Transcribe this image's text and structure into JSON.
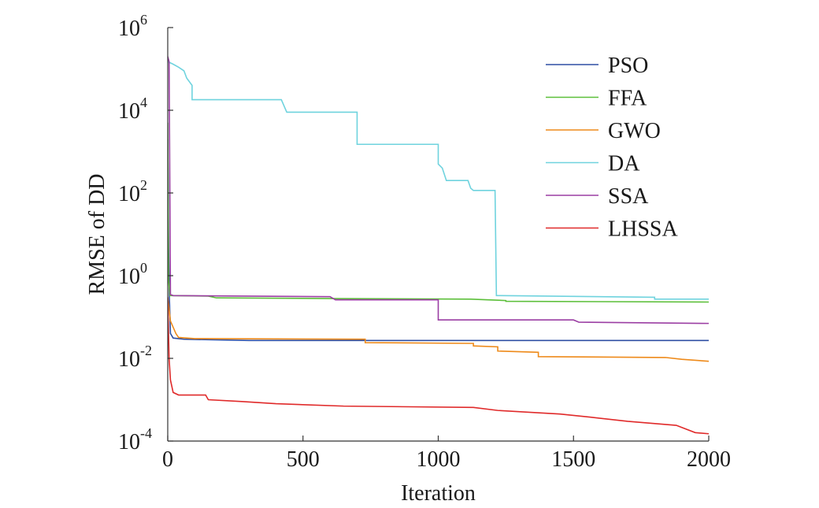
{
  "chart_data": {
    "type": "line",
    "title": "",
    "xlabel": "Iteration",
    "ylabel": "RMSE of DD",
    "xlim": [
      0,
      2000
    ],
    "ylim": [
      0.0001,
      1000000
    ],
    "yscale": "log",
    "grid": false,
    "legend_position": "top-right",
    "x_ticks": [
      {
        "value": 0,
        "label": "0"
      },
      {
        "value": 500,
        "label": "500"
      },
      {
        "value": 1000,
        "label": "1000"
      },
      {
        "value": 1500,
        "label": "1500"
      },
      {
        "value": 2000,
        "label": "2000"
      }
    ],
    "y_ticks": [
      {
        "value": 0.0001,
        "base": "10",
        "exp": "-4"
      },
      {
        "value": 0.01,
        "base": "10",
        "exp": "-2"
      },
      {
        "value": 1,
        "base": "10",
        "exp": "0"
      },
      {
        "value": 100,
        "base": "10",
        "exp": "2"
      },
      {
        "value": 10000,
        "base": "10",
        "exp": "4"
      },
      {
        "value": 1000000,
        "base": "10",
        "exp": "6"
      }
    ],
    "series": [
      {
        "name": "PSO",
        "color": "#2f4fa3",
        "points": [
          [
            0,
            2000
          ],
          [
            3,
            5
          ],
          [
            6,
            0.3
          ],
          [
            10,
            0.04
          ],
          [
            20,
            0.031
          ],
          [
            60,
            0.029
          ],
          [
            300,
            0.027
          ],
          [
            2000,
            0.027
          ]
        ]
      },
      {
        "name": "FFA",
        "color": "#5cbf3a",
        "points": [
          [
            0,
            5000
          ],
          [
            3,
            0.8
          ],
          [
            8,
            0.33
          ],
          [
            150,
            0.32
          ],
          [
            180,
            0.29
          ],
          [
            600,
            0.28
          ],
          [
            1120,
            0.27
          ],
          [
            1120,
            0.27
          ],
          [
            1250,
            0.25
          ],
          [
            1250,
            0.24
          ],
          [
            2000,
            0.23
          ]
        ]
      },
      {
        "name": "GWO",
        "color": "#ee8a1a",
        "points": [
          [
            0,
            0.3
          ],
          [
            10,
            0.08
          ],
          [
            30,
            0.04
          ],
          [
            40,
            0.032
          ],
          [
            100,
            0.03
          ],
          [
            730,
            0.029
          ],
          [
            730,
            0.024
          ],
          [
            1130,
            0.023
          ],
          [
            1130,
            0.02
          ],
          [
            1220,
            0.019
          ],
          [
            1220,
            0.015
          ],
          [
            1370,
            0.014
          ],
          [
            1370,
            0.011
          ],
          [
            1840,
            0.0105
          ],
          [
            1900,
            0.0095
          ],
          [
            2000,
            0.0085
          ]
        ]
      },
      {
        "name": "DA",
        "color": "#6fd3de",
        "points": [
          [
            0,
            150000
          ],
          [
            20,
            130000
          ],
          [
            40,
            110000
          ],
          [
            60,
            90000
          ],
          [
            70,
            60000
          ],
          [
            90,
            40000
          ],
          [
            90,
            18000
          ],
          [
            420,
            18000
          ],
          [
            440,
            9000
          ],
          [
            700,
            9000
          ],
          [
            700,
            1500
          ],
          [
            1000,
            1500
          ],
          [
            1000,
            500
          ],
          [
            1015,
            400
          ],
          [
            1030,
            200
          ],
          [
            1110,
            200
          ],
          [
            1120,
            130
          ],
          [
            1130,
            115
          ],
          [
            1210,
            115
          ],
          [
            1215,
            0.33
          ],
          [
            1800,
            0.3
          ],
          [
            1800,
            0.27
          ],
          [
            2000,
            0.27
          ]
        ]
      },
      {
        "name": "SSA",
        "color": "#9b3ea3",
        "points": [
          [
            0,
            200000
          ],
          [
            5,
            150000
          ],
          [
            10,
            0.35
          ],
          [
            20,
            0.33
          ],
          [
            600,
            0.31
          ],
          [
            620,
            0.26
          ],
          [
            1000,
            0.26
          ],
          [
            1000,
            0.085
          ],
          [
            1500,
            0.085
          ],
          [
            1520,
            0.075
          ],
          [
            2000,
            0.07
          ]
        ]
      },
      {
        "name": "LHSSA",
        "color": "#e02a2a",
        "points": [
          [
            0,
            0.3
          ],
          [
            5,
            0.01
          ],
          [
            10,
            0.003
          ],
          [
            20,
            0.0015
          ],
          [
            40,
            0.0013
          ],
          [
            140,
            0.0013
          ],
          [
            150,
            0.001
          ],
          [
            280,
            0.0009
          ],
          [
            400,
            0.0008
          ],
          [
            650,
            0.0007
          ],
          [
            1130,
            0.00065
          ],
          [
            1220,
            0.00055
          ],
          [
            1450,
            0.00045
          ],
          [
            1560,
            0.00038
          ],
          [
            1700,
            0.0003
          ],
          [
            1880,
            0.00024
          ],
          [
            1950,
            0.00016
          ],
          [
            2000,
            0.00015
          ]
        ]
      }
    ]
  }
}
